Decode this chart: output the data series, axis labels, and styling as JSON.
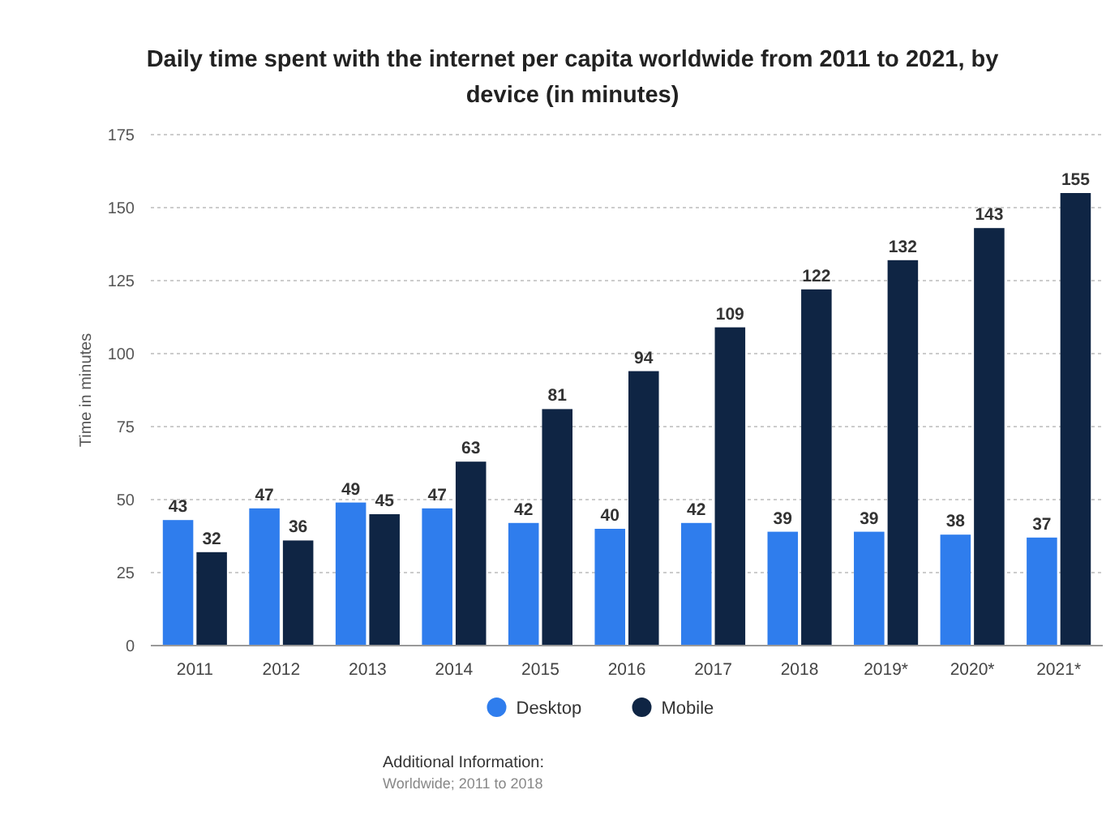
{
  "chart_data": {
    "type": "bar",
    "title": "Daily time spent with the internet per capita worldwide from 2011 to 2021, by device (in minutes)",
    "ylabel": "Time in minutes",
    "categories": [
      "2011",
      "2012",
      "2013",
      "2014",
      "2015",
      "2016",
      "2017",
      "2018",
      "2019*",
      "2020*",
      "2021*"
    ],
    "series": [
      {
        "name": "Desktop",
        "color": "#2f7ded",
        "values": [
          43,
          47,
          49,
          47,
          42,
          40,
          42,
          39,
          39,
          38,
          37
        ]
      },
      {
        "name": "Mobile",
        "color": "#0f2544",
        "values": [
          32,
          36,
          45,
          63,
          81,
          94,
          109,
          122,
          132,
          143,
          155
        ]
      }
    ],
    "ylim": [
      0,
      175
    ],
    "yticks": [
      0,
      25,
      50,
      75,
      100,
      125,
      150,
      175
    ],
    "grid": "y",
    "legend": "bottom",
    "data_labels": true,
    "annotations": [
      "Additional Information:",
      "Worldwide; 2011 to 2018"
    ]
  }
}
